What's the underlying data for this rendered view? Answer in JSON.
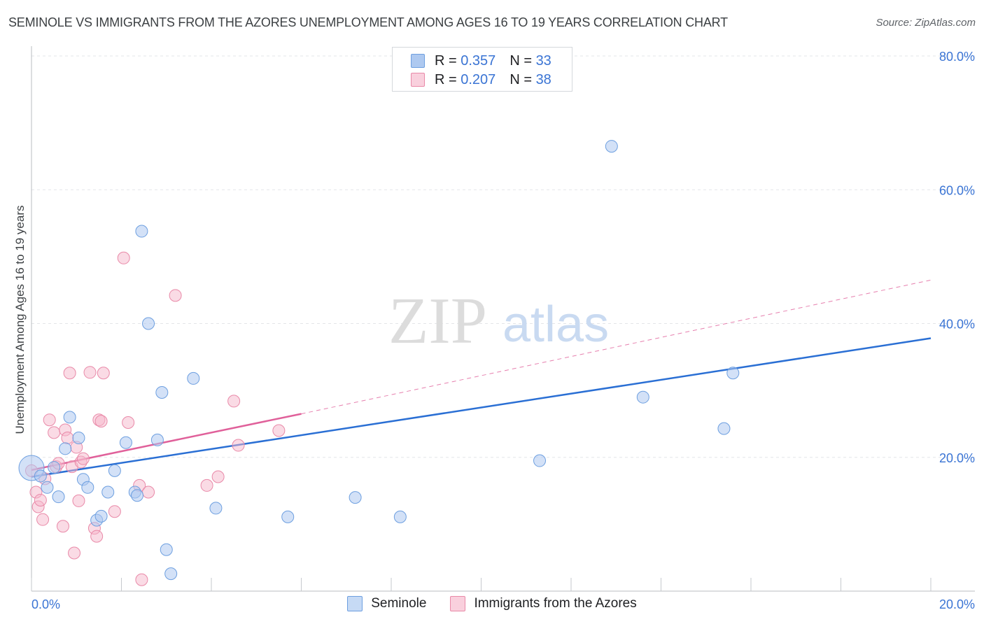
{
  "title": "SEMINOLE VS IMMIGRANTS FROM THE AZORES UNEMPLOYMENT AMONG AGES 16 TO 19 YEARS CORRELATION CHART",
  "source": "Source: ZipAtlas.com",
  "watermark": {
    "zip": "ZIP",
    "atlas": "atlas"
  },
  "colors": {
    "seminole_fill": "#aec9f0",
    "seminole_stroke": "#6d9fe0",
    "seminole_line": "#2a6fd4",
    "azores_fill": "#f5b8cb",
    "azores_stroke": "#e989a8",
    "azores_line": "#e0609a",
    "axis_text": "#3a74d4",
    "grid": "#e3e5e8"
  },
  "legend_top": [
    {
      "r_label": "R =",
      "r_value": "0.357",
      "n_label": "N =",
      "n_value": "33"
    },
    {
      "r_label": "R =",
      "r_value": "0.207",
      "n_label": "N =",
      "n_value": "38"
    }
  ],
  "legend_bottom": [
    "Seminole",
    "Immigrants from the Azores"
  ],
  "chart_data": {
    "type": "scatter",
    "title": "SEMINOLE VS IMMIGRANTS FROM THE AZORES UNEMPLOYMENT AMONG AGES 16 TO 19 YEARS CORRELATION CHART",
    "xlabel": "",
    "ylabel": "Unemployment Among Ages 16 to 19 years",
    "xlim": [
      0,
      20
    ],
    "ylim": [
      0,
      80
    ],
    "x_tick_labels": [
      "0.0%",
      "20.0%"
    ],
    "y_ticks": [
      20,
      40,
      60,
      80
    ],
    "y_tick_labels": [
      "20.0%",
      "40.0%",
      "60.0%",
      "80.0%"
    ],
    "legend_position": "top-center",
    "series": [
      {
        "name": "Seminole",
        "R": 0.357,
        "N": 33,
        "trend": {
          "x": [
            0,
            20
          ],
          "y": [
            17.1,
            37.8
          ],
          "style": "solid"
        },
        "points": [
          {
            "x": 0.0,
            "y": 18.4,
            "size": "large"
          },
          {
            "x": 0.2,
            "y": 17.2
          },
          {
            "x": 0.35,
            "y": 15.5
          },
          {
            "x": 0.5,
            "y": 18.5
          },
          {
            "x": 0.6,
            "y": 14.1
          },
          {
            "x": 0.75,
            "y": 21.3
          },
          {
            "x": 0.85,
            "y": 26.0
          },
          {
            "x": 1.05,
            "y": 22.9
          },
          {
            "x": 1.15,
            "y": 16.7
          },
          {
            "x": 1.25,
            "y": 15.5
          },
          {
            "x": 1.45,
            "y": 10.6
          },
          {
            "x": 1.55,
            "y": 11.2
          },
          {
            "x": 1.7,
            "y": 14.8
          },
          {
            "x": 1.85,
            "y": 18.0
          },
          {
            "x": 2.1,
            "y": 22.2
          },
          {
            "x": 2.3,
            "y": 14.8
          },
          {
            "x": 2.35,
            "y": 14.3
          },
          {
            "x": 2.45,
            "y": 53.8
          },
          {
            "x": 2.6,
            "y": 40.0
          },
          {
            "x": 2.8,
            "y": 22.6
          },
          {
            "x": 2.9,
            "y": 29.7
          },
          {
            "x": 3.0,
            "y": 6.2
          },
          {
            "x": 3.1,
            "y": 2.6
          },
          {
            "x": 3.6,
            "y": 31.8
          },
          {
            "x": 4.1,
            "y": 12.4
          },
          {
            "x": 5.7,
            "y": 11.1
          },
          {
            "x": 7.2,
            "y": 14.0
          },
          {
            "x": 8.2,
            "y": 11.1
          },
          {
            "x": 11.3,
            "y": 19.5
          },
          {
            "x": 12.9,
            "y": 66.5
          },
          {
            "x": 13.6,
            "y": 29.0
          },
          {
            "x": 15.4,
            "y": 24.3
          },
          {
            "x": 15.6,
            "y": 32.6
          }
        ]
      },
      {
        "name": "Immigrants from the Azores",
        "R": 0.207,
        "N": 38,
        "trend": {
          "x": [
            0,
            6.0
          ],
          "y": [
            18.1,
            26.5
          ],
          "style": "solid"
        },
        "trend_extended": {
          "x": [
            6.0,
            20
          ],
          "y": [
            26.5,
            46.5
          ],
          "style": "dashed"
        },
        "points": [
          {
            "x": 0.0,
            "y": 18.0
          },
          {
            "x": 0.1,
            "y": 14.8
          },
          {
            "x": 0.15,
            "y": 12.6
          },
          {
            "x": 0.2,
            "y": 13.6
          },
          {
            "x": 0.25,
            "y": 10.7
          },
          {
            "x": 0.3,
            "y": 16.8
          },
          {
            "x": 0.4,
            "y": 25.6
          },
          {
            "x": 0.5,
            "y": 23.7
          },
          {
            "x": 0.55,
            "y": 18.6
          },
          {
            "x": 0.6,
            "y": 19.1
          },
          {
            "x": 0.7,
            "y": 9.7
          },
          {
            "x": 0.75,
            "y": 24.1
          },
          {
            "x": 0.8,
            "y": 22.9
          },
          {
            "x": 0.85,
            "y": 32.6
          },
          {
            "x": 0.9,
            "y": 18.6
          },
          {
            "x": 0.95,
            "y": 5.7
          },
          {
            "x": 1.0,
            "y": 21.5
          },
          {
            "x": 1.05,
            "y": 13.5
          },
          {
            "x": 1.1,
            "y": 19.3
          },
          {
            "x": 1.15,
            "y": 19.8
          },
          {
            "x": 1.3,
            "y": 32.7
          },
          {
            "x": 1.4,
            "y": 9.4
          },
          {
            "x": 1.45,
            "y": 8.2
          },
          {
            "x": 1.5,
            "y": 25.6
          },
          {
            "x": 1.55,
            "y": 25.4
          },
          {
            "x": 1.6,
            "y": 32.6
          },
          {
            "x": 1.85,
            "y": 11.9
          },
          {
            "x": 2.05,
            "y": 49.8
          },
          {
            "x": 2.15,
            "y": 25.2
          },
          {
            "x": 2.4,
            "y": 15.8
          },
          {
            "x": 2.45,
            "y": 1.7
          },
          {
            "x": 2.6,
            "y": 14.8
          },
          {
            "x": 3.2,
            "y": 44.2
          },
          {
            "x": 3.9,
            "y": 15.8
          },
          {
            "x": 4.15,
            "y": 17.1
          },
          {
            "x": 4.5,
            "y": 28.4
          },
          {
            "x": 4.6,
            "y": 21.8
          },
          {
            "x": 5.5,
            "y": 24.0
          }
        ]
      }
    ]
  }
}
